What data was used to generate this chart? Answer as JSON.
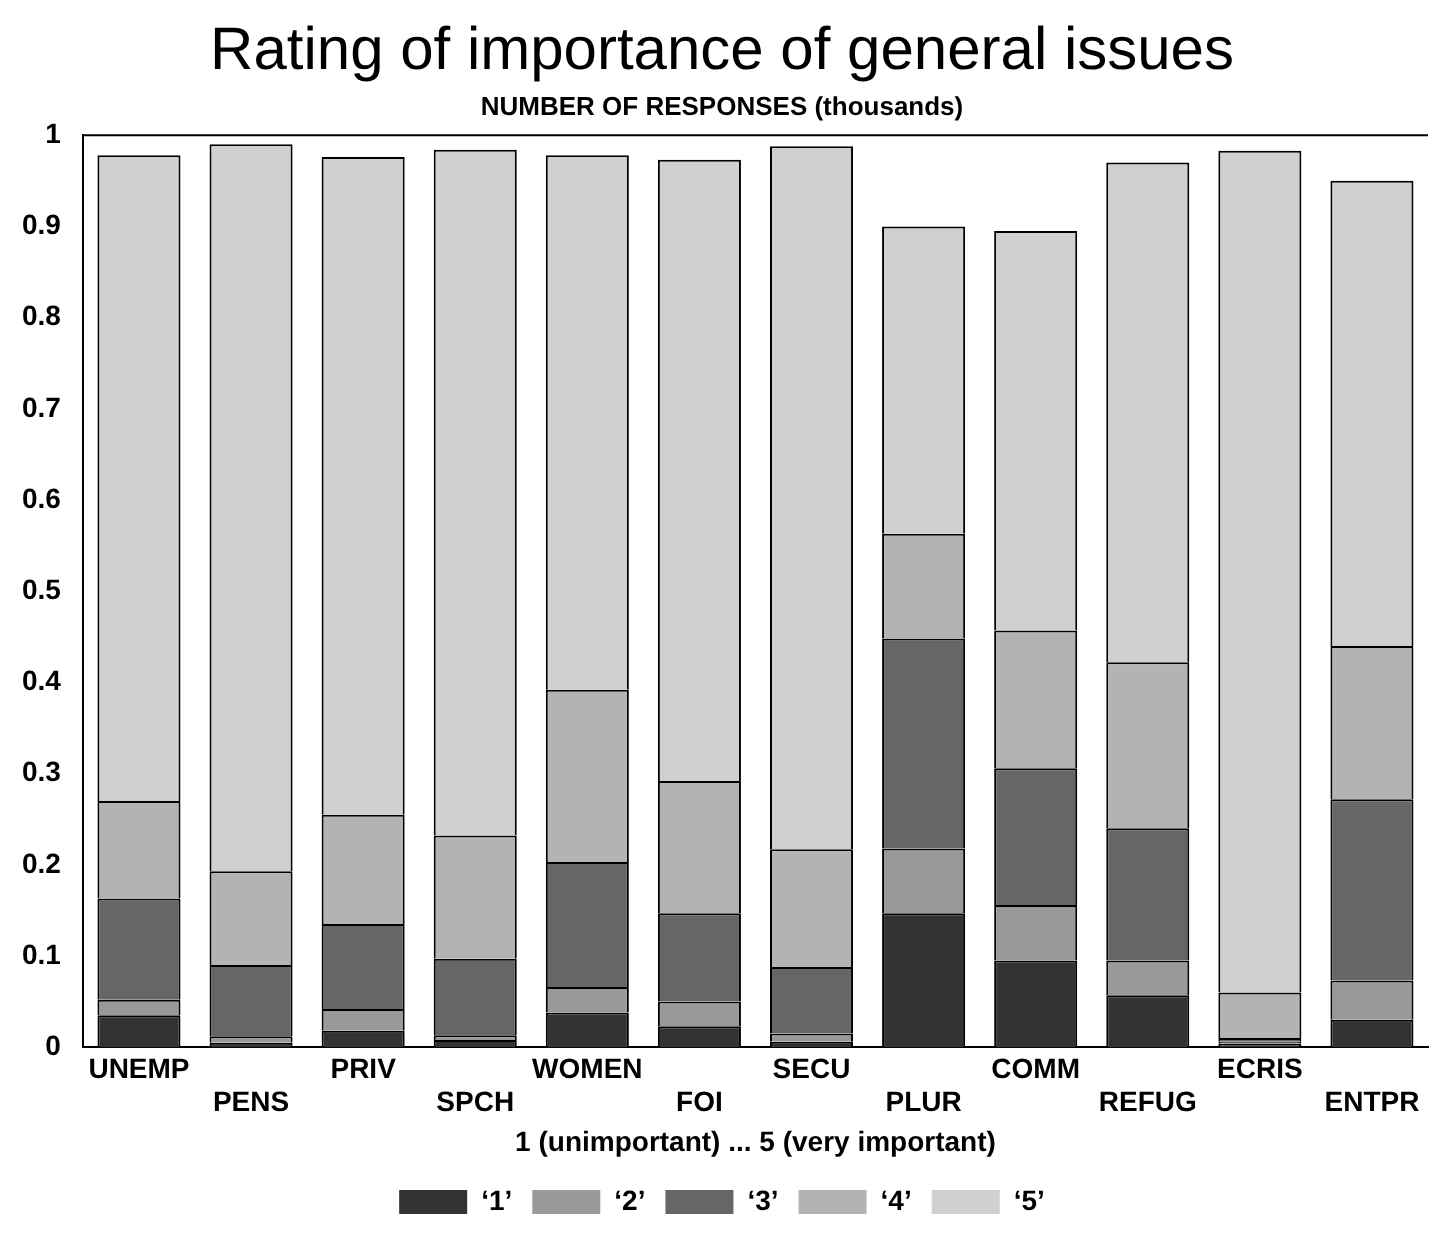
{
  "chart_data": {
    "type": "bar",
    "title": "Rating of importance of general issues",
    "subtitle": "NUMBER OF RESPONSES (thousands)",
    "xlabel": "1 (unimportant) ... 5 (very important)",
    "categories": [
      "UNEMP",
      "PENS",
      "PRIV",
      "SPCH",
      "WOMEN",
      "FOI",
      "SECU",
      "PLUR",
      "COMM",
      "REFUG",
      "ECRIS",
      "ENTPR"
    ],
    "stacked": true,
    "ylim": [
      0,
      1
    ],
    "yticks": [
      0,
      0.1,
      0.2,
      0.3,
      0.4,
      0.5,
      0.6,
      0.7,
      0.8,
      0.9,
      1
    ],
    "grid": false,
    "legend": "bottom",
    "series": [
      {
        "name": "‘1’",
        "color": "#333333",
        "values": [
          0.035,
          0.005,
          0.018,
          0.008,
          0.038,
          0.023,
          0.006,
          0.147,
          0.095,
          0.057,
          0.004,
          0.03
        ]
      },
      {
        "name": "‘2’",
        "color": "#999999",
        "values": [
          0.017,
          0.007,
          0.024,
          0.005,
          0.028,
          0.027,
          0.009,
          0.071,
          0.061,
          0.038,
          0.002,
          0.043
        ]
      },
      {
        "name": "‘3’",
        "color": "#666666",
        "values": [
          0.111,
          0.078,
          0.093,
          0.084,
          0.137,
          0.097,
          0.073,
          0.23,
          0.15,
          0.145,
          0.004,
          0.199
        ]
      },
      {
        "name": "‘4’",
        "color": "#b3b3b3",
        "values": [
          0.107,
          0.103,
          0.12,
          0.135,
          0.189,
          0.145,
          0.129,
          0.115,
          0.151,
          0.182,
          0.05,
          0.168
        ]
      },
      {
        "name": "‘5’",
        "color": "#d0d0d0",
        "values": [
          0.708,
          0.797,
          0.721,
          0.752,
          0.586,
          0.681,
          0.771,
          0.337,
          0.438,
          0.548,
          0.923,
          0.51
        ]
      }
    ]
  }
}
